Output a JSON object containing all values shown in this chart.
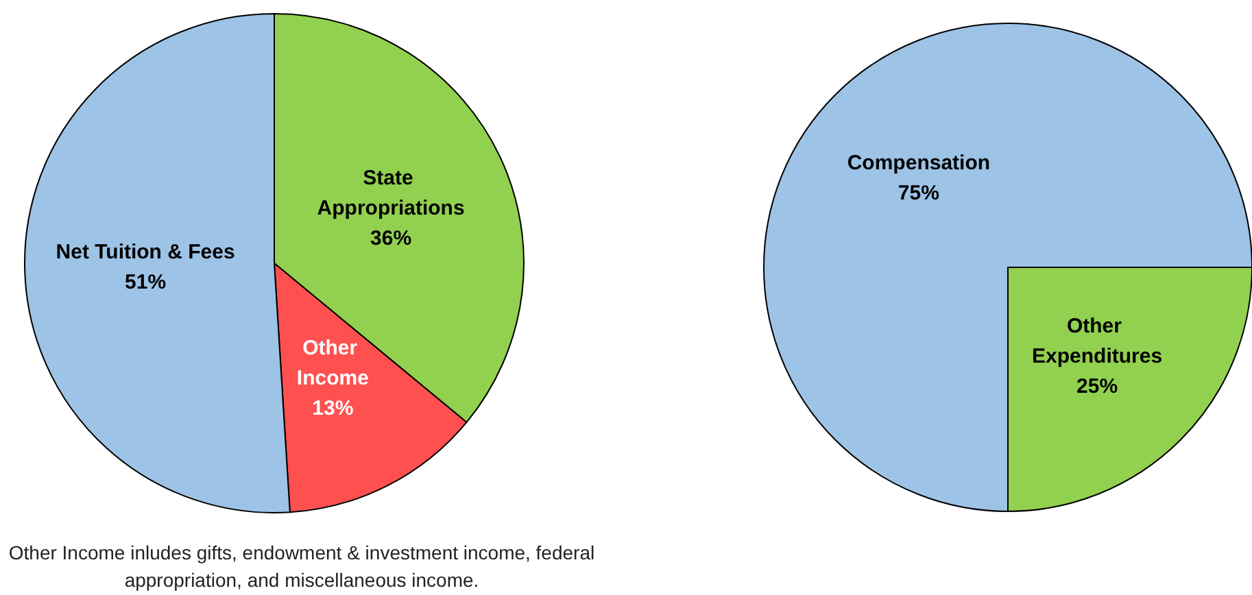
{
  "chart_data": [
    {
      "type": "pie",
      "categories": [
        "State Appropriations",
        "Other Income",
        "Net Tuition & Fees"
      ],
      "values": [
        36,
        13,
        51
      ],
      "value_labels": [
        "36%",
        "13%",
        "51%"
      ],
      "colors": [
        "#92d050",
        "#ff5050",
        "#9dc3e6"
      ],
      "legend": false,
      "annotations": [
        "Other Income inludes gifts, endowment & investment income, federal appropriation, and miscellaneous income."
      ]
    },
    {
      "type": "pie",
      "categories": [
        "Other Expenditures",
        "Compensation"
      ],
      "values": [
        25,
        75
      ],
      "value_labels": [
        "25%",
        "75%"
      ],
      "colors": [
        "#92d050",
        "#9dc3e6"
      ],
      "legend": false
    }
  ]
}
